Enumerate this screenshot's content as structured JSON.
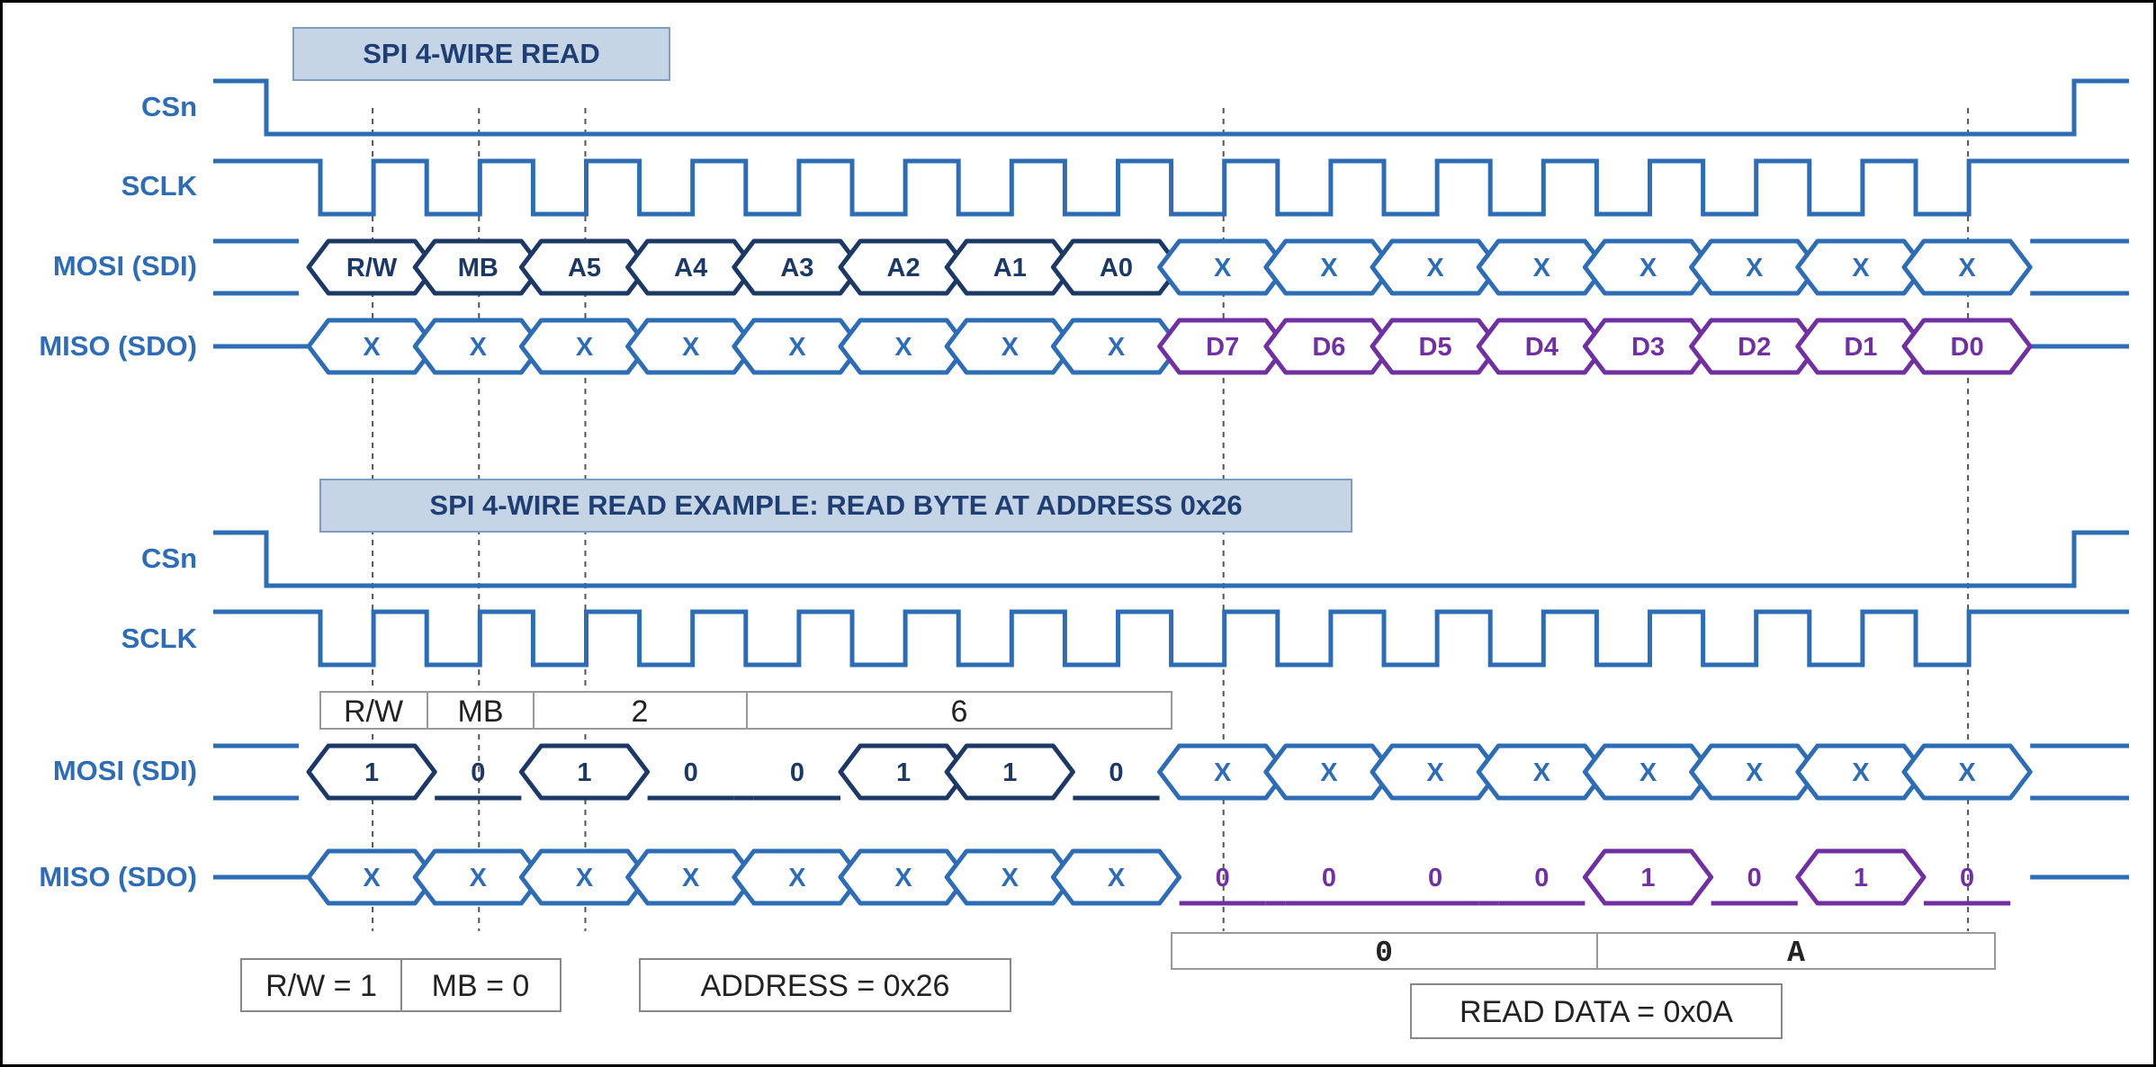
{
  "colors": {
    "signal": "#2e6cb3",
    "dark": "#1c3965",
    "purple": "#7030a0",
    "title_fill": "#c5d5e6",
    "title_stroke": "#7f9cc2",
    "guide": "#555555",
    "box_stroke": "#888888"
  },
  "top": {
    "title": "SPI 4-WIRE READ",
    "labels": {
      "csn": "CSn",
      "sclk": "SCLK",
      "mosi": "MOSI (SDI)",
      "miso": "MISO (SDO)"
    },
    "mosi_cells": [
      "R/W",
      "MB",
      "A5",
      "A4",
      "A3",
      "A2",
      "A1",
      "A0",
      "X",
      "X",
      "X",
      "X",
      "X",
      "X",
      "X",
      "X"
    ],
    "miso_cells": [
      "X",
      "X",
      "X",
      "X",
      "X",
      "X",
      "X",
      "X",
      "D7",
      "D6",
      "D5",
      "D4",
      "D3",
      "D2",
      "D1",
      "D0"
    ]
  },
  "bottom": {
    "title": "SPI 4-WIRE READ EXAMPLE: READ BYTE AT ADDRESS 0x26",
    "labels": {
      "csn": "CSn",
      "sclk": "SCLK",
      "mosi": "MOSI (SDI)",
      "miso": "MISO (SDO)"
    },
    "header_cells": [
      "R/W",
      "MB",
      "2",
      "6"
    ],
    "mosi_bits": [
      "1",
      "0",
      "1",
      "0",
      "0",
      "1",
      "1",
      "0",
      "X",
      "X",
      "X",
      "X",
      "X",
      "X",
      "X",
      "X"
    ],
    "miso_bits": [
      "X",
      "X",
      "X",
      "X",
      "X",
      "X",
      "X",
      "X",
      "0",
      "0",
      "0",
      "0",
      "1",
      "0",
      "1",
      "0"
    ],
    "data_nibbles": [
      "0",
      "A"
    ],
    "notes": {
      "rw": "R/W = 1",
      "mb": "MB = 0",
      "address": "ADDRESS = 0x26",
      "read_data": "READ DATA = 0x0A"
    }
  }
}
